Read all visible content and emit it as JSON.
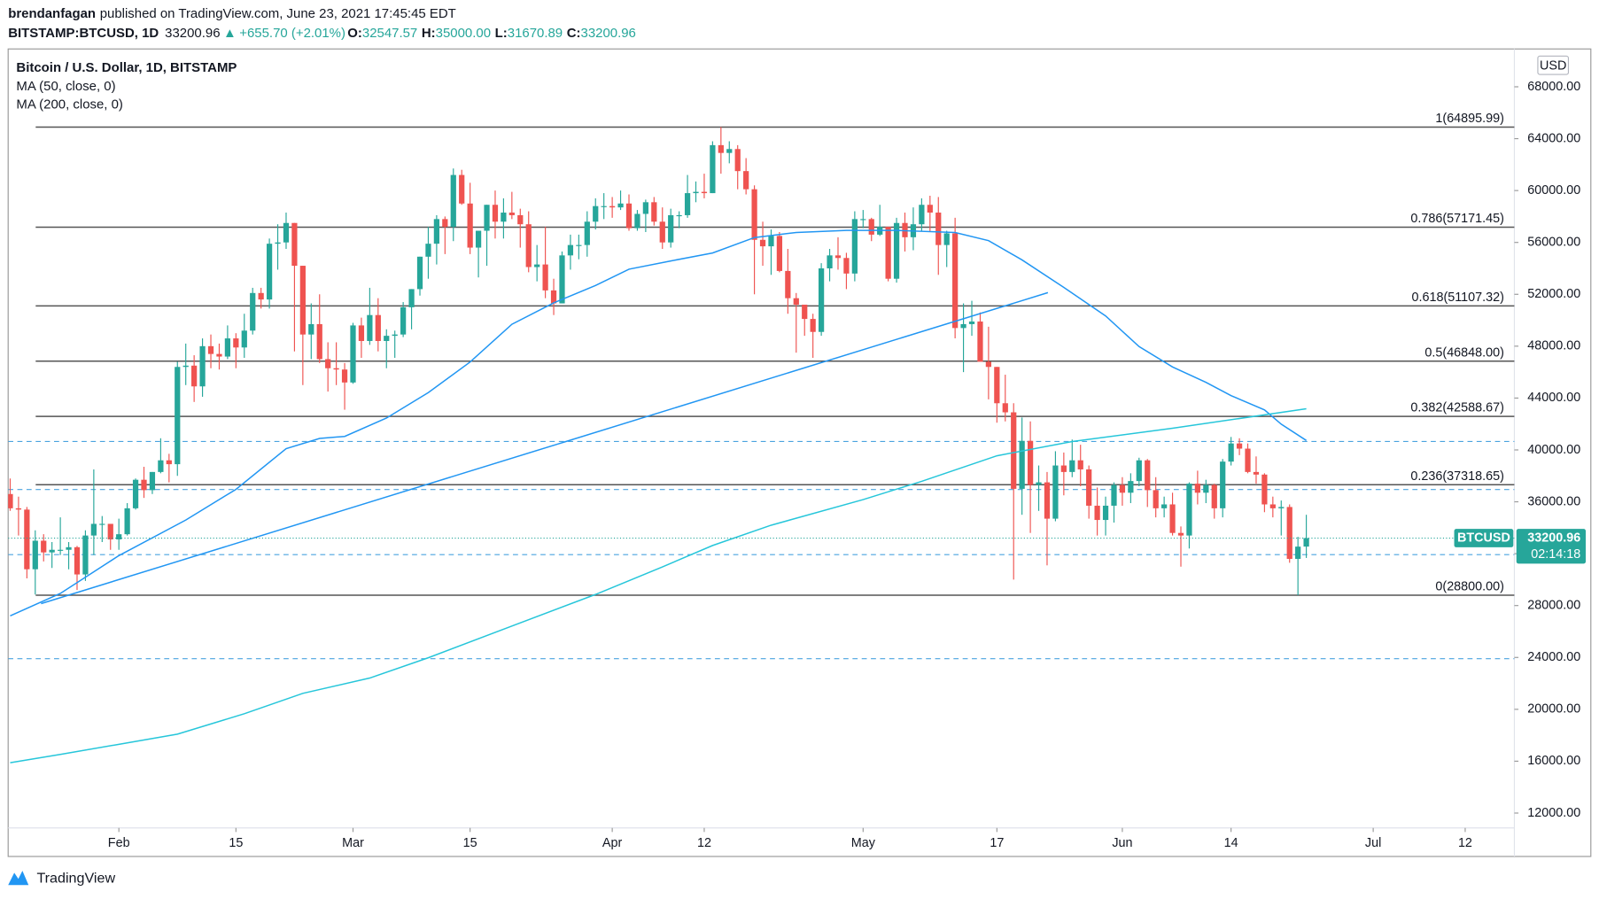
{
  "header": {
    "author": "brendanfagan",
    "published": "published on TradingView.com, June 23, 2021 17:45:45 EDT",
    "symbol": "BITSTAMP:BTCUSD, 1D",
    "price": "33200.96",
    "arrow": "▲",
    "change": "+655.70 (+2.01%)",
    "o_key": "O:",
    "o_val": "32547.57",
    "h_key": "H:",
    "h_val": "35000.00",
    "l_key": "L:",
    "l_val": "31670.89",
    "c_key": "C:",
    "c_val": "33200.96"
  },
  "legend_title": "Bitcoin / U.S. Dollar, 1D, BITSTAMP",
  "currency": "USD",
  "price_tag": {
    "symbol": "BTCUSD",
    "countdown": "02:14:18"
  },
  "footer": "TradingView",
  "chart_data": {
    "type": "candlestick",
    "up_color": "#26a69a",
    "down_color": "#ef5350",
    "xlim": [
      -0.24,
      179.88
    ],
    "ylim": [
      8654,
      70760
    ],
    "xticks": [
      {
        "value": 13,
        "label": "Feb"
      },
      {
        "value": 27,
        "label": "15"
      },
      {
        "value": 41,
        "label": "Mar"
      },
      {
        "value": 55,
        "label": "15"
      },
      {
        "value": 72,
        "label": "Apr"
      },
      {
        "value": 83,
        "label": "12"
      },
      {
        "value": 102,
        "label": "May"
      },
      {
        "value": 118,
        "label": "17"
      },
      {
        "value": 133,
        "label": "Jun"
      },
      {
        "value": 146,
        "label": "14"
      },
      {
        "value": 163,
        "label": "Jul"
      },
      {
        "value": 174,
        "label": "12"
      }
    ],
    "yticks": [
      {
        "value": 12000,
        "label": "12000.00"
      },
      {
        "value": 16000,
        "label": "16000.00"
      },
      {
        "value": 20000,
        "label": "20000.00"
      },
      {
        "value": 24000,
        "label": "24000.00"
      },
      {
        "value": 28000,
        "label": "28000.00"
      },
      {
        "value": 32000,
        "label": "32000.00"
      },
      {
        "value": 36000,
        "label": "36000.00"
      },
      {
        "value": 40000,
        "label": "40000.00"
      },
      {
        "value": 44000,
        "label": "44000.00"
      },
      {
        "value": 48000,
        "label": "48000.00"
      },
      {
        "value": 52000,
        "label": "52000.00"
      },
      {
        "value": 56000,
        "label": "56000.00"
      },
      {
        "value": 60000,
        "label": "60000.00"
      },
      {
        "value": 64000,
        "label": "64000.00"
      },
      {
        "value": 68000,
        "label": "68000.00"
      }
    ],
    "fib_levels": [
      {
        "value": 64895.99,
        "label": "1(64895.99)"
      },
      {
        "value": 57171.45,
        "label": "0.786(57171.45)"
      },
      {
        "value": 51107.32,
        "label": "0.618(51107.32)"
      },
      {
        "value": 46848.0,
        "label": "0.5(46848.00)"
      },
      {
        "value": 42588.67,
        "label": "0.382(42588.67)"
      },
      {
        "value": 37318.65,
        "label": "0.236(37318.65)"
      },
      {
        "value": 28800.0,
        "label": "0(28800.00)"
      }
    ],
    "dashed_levels": [
      40650,
      36950,
      31930,
      23900
    ],
    "dashed_color": "#4aa3df",
    "trendline": {
      "x": [
        3.7,
        124.1
      ],
      "values": [
        28150,
        52130
      ],
      "color": "#2196f3"
    },
    "series": [
      {
        "name": "MA (50, close, 0)",
        "color": "#2196f3",
        "x": [
          0,
          6,
          13,
          21,
          27,
          33,
          37,
          40,
          45,
          50,
          55,
          60,
          65,
          70,
          74,
          79,
          84,
          89,
          94,
          100,
          106,
          113,
          117,
          121,
          126,
          131,
          135,
          139,
          143,
          146,
          150,
          152,
          155
        ],
        "values": [
          27210,
          28940,
          31850,
          34600,
          36960,
          40100,
          40890,
          41040,
          42460,
          44420,
          46780,
          49690,
          51340,
          52680,
          53940,
          54570,
          55190,
          56370,
          56770,
          56920,
          56920,
          56770,
          56140,
          54650,
          52530,
          50330,
          47970,
          46400,
          45210,
          44190,
          43090,
          41990,
          40730
        ]
      },
      {
        "name": "MA (200, close, 0)",
        "color": "#26c6da",
        "x": [
          0,
          6,
          13,
          20,
          28,
          35,
          43,
          50,
          60,
          70,
          78,
          84,
          91,
          102,
          109,
          118,
          127,
          139,
          155
        ],
        "values": [
          15890,
          16520,
          17300,
          18090,
          19660,
          21230,
          22410,
          23980,
          26420,
          28860,
          30980,
          32630,
          34200,
          36170,
          37580,
          39550,
          40650,
          41670,
          43170
        ]
      }
    ],
    "candles": [
      [
        36600,
        37800,
        35300,
        35500
      ],
      [
        35500,
        36400,
        33400,
        35400
      ],
      [
        35400,
        35600,
        30100,
        30800
      ],
      [
        30800,
        33800,
        28850,
        33000
      ],
      [
        33000,
        33500,
        31400,
        32100
      ],
      [
        32100,
        32900,
        30900,
        32300
      ],
      [
        32300,
        34800,
        31900,
        32300
      ],
      [
        32300,
        32900,
        30800,
        32500
      ],
      [
        32500,
        32600,
        29200,
        30400
      ],
      [
        30400,
        33800,
        29900,
        33400
      ],
      [
        33400,
        38500,
        31900,
        34300
      ],
      [
        34300,
        34900,
        32900,
        34300
      ],
      [
        34300,
        34300,
        32300,
        33100
      ],
      [
        33100,
        34700,
        32300,
        33500
      ],
      [
        33500,
        35900,
        33400,
        35500
      ],
      [
        35500,
        37800,
        35400,
        37700
      ],
      [
        37700,
        38700,
        36300,
        36900
      ],
      [
        36900,
        38300,
        36600,
        38300
      ],
      [
        38300,
        40900,
        38200,
        39200
      ],
      [
        39200,
        39700,
        37500,
        38900
      ],
      [
        38900,
        46800,
        38000,
        46400
      ],
      [
        46400,
        48200,
        45000,
        46500
      ],
      [
        46500,
        47300,
        43700,
        44900
      ],
      [
        44900,
        48600,
        44100,
        48000
      ],
      [
        48000,
        48900,
        46300,
        47400
      ],
      [
        47400,
        48200,
        46200,
        47200
      ],
      [
        47200,
        49600,
        47000,
        48600
      ],
      [
        48600,
        49000,
        46300,
        47900
      ],
      [
        47900,
        50500,
        47100,
        49200
      ],
      [
        49200,
        52500,
        48900,
        52100
      ],
      [
        52100,
        52500,
        50900,
        51600
      ],
      [
        51600,
        56300,
        50900,
        55900
      ],
      [
        55900,
        57400,
        53900,
        56000
      ],
      [
        56000,
        58300,
        55500,
        57500
      ],
      [
        57500,
        57500,
        47600,
        54200
      ],
      [
        54200,
        54200,
        45000,
        48900
      ],
      [
        48900,
        51300,
        47000,
        49700
      ],
      [
        49700,
        52000,
        46700,
        47000
      ],
      [
        47000,
        48300,
        44500,
        46300
      ],
      [
        46300,
        48300,
        45000,
        46200
      ],
      [
        46200,
        46700,
        43100,
        45200
      ],
      [
        45200,
        49800,
        45100,
        49600
      ],
      [
        49600,
        50200,
        47100,
        48400
      ],
      [
        48400,
        52500,
        48100,
        50400
      ],
      [
        50400,
        51700,
        47600,
        48400
      ],
      [
        48400,
        49300,
        46300,
        48800
      ],
      [
        48800,
        49200,
        47100,
        48900
      ],
      [
        48900,
        51400,
        48700,
        51000
      ],
      [
        51000,
        52400,
        49300,
        52400
      ],
      [
        52400,
        54900,
        51900,
        54900
      ],
      [
        54900,
        57200,
        53200,
        55900
      ],
      [
        55900,
        58100,
        54300,
        57800
      ],
      [
        57800,
        58000,
        55100,
        57200
      ],
      [
        57200,
        61700,
        56100,
        61200
      ],
      [
        61200,
        61600,
        58900,
        59000
      ],
      [
        59000,
        60600,
        55100,
        55600
      ],
      [
        55600,
        56900,
        53300,
        56900
      ],
      [
        56900,
        58900,
        54200,
        58900
      ],
      [
        58900,
        60000,
        56300,
        57600
      ],
      [
        57600,
        59400,
        56300,
        58300
      ],
      [
        58300,
        59900,
        57800,
        58100
      ],
      [
        58100,
        58600,
        55600,
        57400
      ],
      [
        57400,
        58400,
        53700,
        54100
      ],
      [
        54100,
        55800,
        53000,
        54300
      ],
      [
        54300,
        57200,
        51700,
        52300
      ],
      [
        52300,
        53200,
        50400,
        51300
      ],
      [
        51300,
        55300,
        51300,
        55000
      ],
      [
        55000,
        56600,
        53900,
        55800
      ],
      [
        55800,
        56600,
        54700,
        55800
      ],
      [
        55800,
        58400,
        54900,
        57600
      ],
      [
        57600,
        59400,
        57000,
        58800
      ],
      [
        58800,
        59800,
        57800,
        58800
      ],
      [
        58800,
        59500,
        57900,
        58700
      ],
      [
        58700,
        60000,
        58500,
        59000
      ],
      [
        59000,
        59700,
        56900,
        57100
      ],
      [
        57100,
        58500,
        56900,
        58200
      ],
      [
        58200,
        59300,
        56800,
        59100
      ],
      [
        59100,
        59500,
        57300,
        57600
      ],
      [
        57600,
        58700,
        55500,
        56000
      ],
      [
        56000,
        58600,
        55600,
        58100
      ],
      [
        58100,
        58400,
        57100,
        58100
      ],
      [
        58100,
        61200,
        57900,
        59800
      ],
      [
        59800,
        60700,
        59100,
        59900
      ],
      [
        59900,
        61300,
        59400,
        59800
      ],
      [
        59800,
        63800,
        59800,
        63500
      ],
      [
        63500,
        64900,
        61300,
        62900
      ],
      [
        62900,
        63800,
        62100,
        63200
      ],
      [
        63200,
        63500,
        60100,
        61500
      ],
      [
        61500,
        62500,
        59700,
        60100
      ],
      [
        60100,
        60400,
        52000,
        56200
      ],
      [
        56200,
        57600,
        54200,
        55700
      ],
      [
        55700,
        57000,
        53500,
        56500
      ],
      [
        56500,
        56800,
        53700,
        53800
      ],
      [
        53800,
        55500,
        50500,
        51700
      ],
      [
        51700,
        52100,
        47500,
        51200
      ],
      [
        51200,
        51200,
        48800,
        50100
      ],
      [
        50100,
        50500,
        47100,
        49100
      ],
      [
        49100,
        54400,
        48800,
        54000
      ],
      [
        54000,
        55500,
        53000,
        55000
      ],
      [
        55000,
        56400,
        53900,
        54800
      ],
      [
        54800,
        55200,
        52400,
        53600
      ],
      [
        53600,
        58400,
        53000,
        57800
      ],
      [
        57800,
        58500,
        57100,
        57800
      ],
      [
        57800,
        57900,
        56100,
        56600
      ],
      [
        56600,
        58900,
        56500,
        57200
      ],
      [
        57200,
        57200,
        53000,
        53200
      ],
      [
        53200,
        57900,
        52900,
        57500
      ],
      [
        57500,
        58300,
        55300,
        56400
      ],
      [
        56400,
        58700,
        55400,
        57400
      ],
      [
        57400,
        59400,
        56900,
        58900
      ],
      [
        58900,
        59600,
        56800,
        58300
      ],
      [
        58300,
        59500,
        53500,
        55800
      ],
      [
        55800,
        56900,
        54100,
        56700
      ],
      [
        56700,
        57900,
        48600,
        49400
      ],
      [
        49400,
        51300,
        46000,
        49700
      ],
      [
        49700,
        51500,
        48800,
        49900
      ],
      [
        49900,
        50600,
        46800,
        46800
      ],
      [
        46800,
        49500,
        43900,
        46400
      ],
      [
        46400,
        46400,
        42100,
        43600
      ],
      [
        43600,
        45800,
        42200,
        42900
      ],
      [
        42900,
        43600,
        30000,
        37000
      ],
      [
        37000,
        42500,
        35000,
        40700
      ],
      [
        40700,
        42200,
        33600,
        37300
      ],
      [
        37300,
        38800,
        35300,
        37500
      ],
      [
        37500,
        38300,
        31100,
        34700
      ],
      [
        34700,
        39900,
        34500,
        38800
      ],
      [
        38800,
        39800,
        36500,
        38300
      ],
      [
        38300,
        40800,
        37900,
        39200
      ],
      [
        39200,
        40400,
        37200,
        38500
      ],
      [
        38500,
        38800,
        34700,
        35700
      ],
      [
        35700,
        37100,
        33400,
        34600
      ],
      [
        34600,
        36400,
        33400,
        35700
      ],
      [
        35700,
        37500,
        34400,
        37300
      ],
      [
        37300,
        37900,
        35700,
        36700
      ],
      [
        36700,
        38200,
        35900,
        37600
      ],
      [
        37600,
        39400,
        37200,
        39200
      ],
      [
        39200,
        39300,
        35600,
        36900
      ],
      [
        36900,
        37900,
        34800,
        35500
      ],
      [
        35500,
        36400,
        34800,
        35800
      ],
      [
        35800,
        36700,
        33400,
        33600
      ],
      [
        33600,
        34100,
        31000,
        33400
      ],
      [
        33400,
        37500,
        32400,
        37400
      ],
      [
        37400,
        38400,
        35800,
        36700
      ],
      [
        36700,
        37700,
        35900,
        37300
      ],
      [
        37300,
        37400,
        34700,
        35500
      ],
      [
        35500,
        39300,
        34800,
        39100
      ],
      [
        39100,
        41000,
        38800,
        40500
      ],
      [
        40500,
        40900,
        39600,
        40100
      ],
      [
        40100,
        40500,
        38200,
        38300
      ],
      [
        38300,
        39500,
        37400,
        38100
      ],
      [
        38100,
        38200,
        35200,
        35800
      ],
      [
        35800,
        36400,
        34800,
        35500
      ],
      [
        35500,
        36100,
        33400,
        35600
      ],
      [
        35600,
        35800,
        31300,
        31600
      ],
      [
        31600,
        33300,
        28800,
        32545
      ],
      [
        32547.57,
        35000,
        31670.89,
        33200.96
      ]
    ]
  }
}
